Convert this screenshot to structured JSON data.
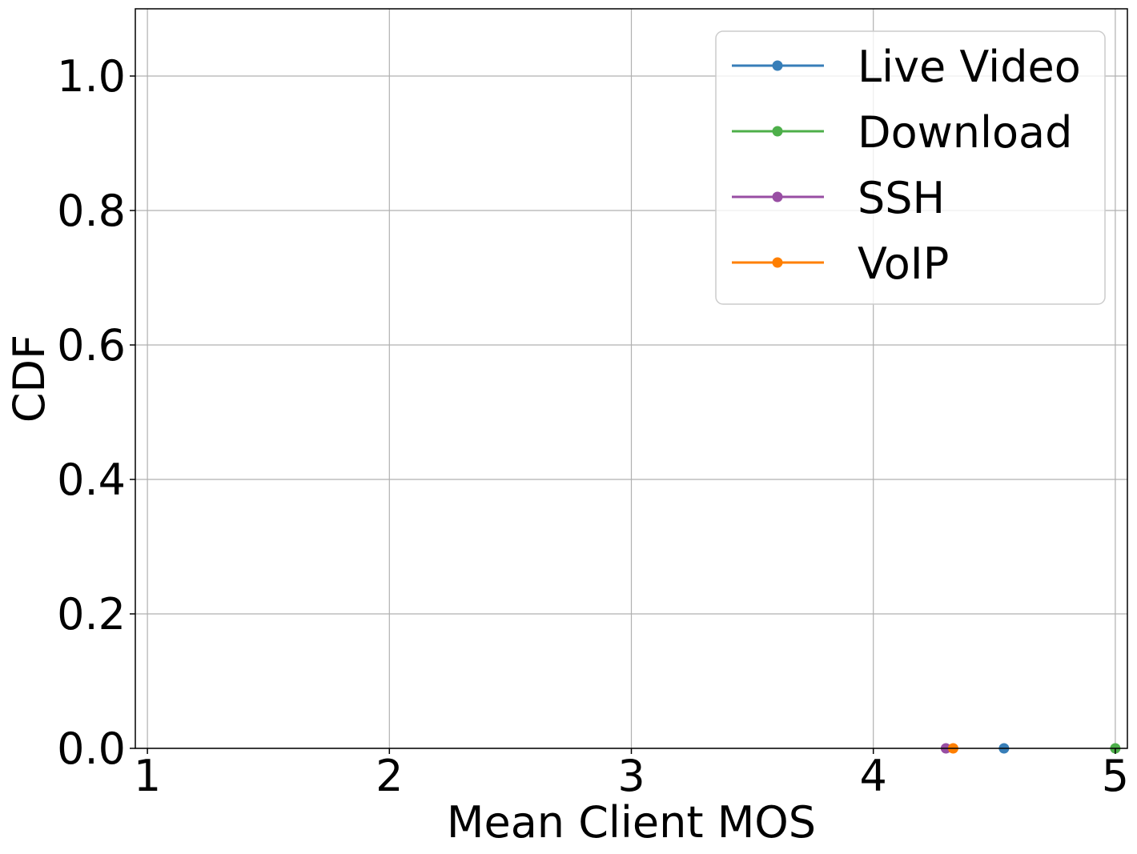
{
  "chart_data": {
    "type": "line",
    "title": "",
    "xlabel": "Mean Client MOS",
    "ylabel": "CDF",
    "xlim": [
      0.95,
      5.05
    ],
    "ylim": [
      0.0,
      1.1
    ],
    "xticks": [
      1,
      2,
      3,
      4,
      5
    ],
    "xtick_labels": [
      "1",
      "2",
      "3",
      "4",
      "5"
    ],
    "yticks": [
      0.0,
      0.2,
      0.4,
      0.6,
      0.8,
      1.0
    ],
    "ytick_labels": [
      "0.0",
      "0.2",
      "0.4",
      "0.6",
      "0.8",
      "1.0"
    ],
    "grid": true,
    "legend_position": "top-right",
    "series": [
      {
        "name": "Live Video",
        "color": "#377eb8",
        "x": [
          4.54
        ],
        "y": [
          0.0
        ]
      },
      {
        "name": "Download",
        "color": "#4daf4a",
        "x": [
          5.0
        ],
        "y": [
          0.0
        ]
      },
      {
        "name": "SSH",
        "color": "#984ea3",
        "x": [
          4.3
        ],
        "y": [
          0.0
        ]
      },
      {
        "name": "VoIP",
        "color": "#ff7f00",
        "x": [
          4.33
        ],
        "y": [
          0.0
        ]
      }
    ]
  }
}
